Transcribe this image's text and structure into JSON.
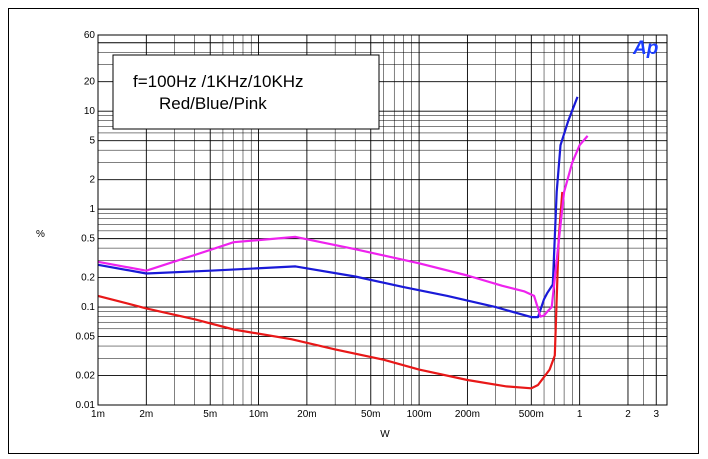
{
  "chart_data": {
    "type": "line",
    "title": "",
    "xlabel": "W",
    "ylabel": "%",
    "x_scale": "log",
    "y_scale": "log",
    "xlim": [
      0.001,
      3.5
    ],
    "ylim": [
      0.01,
      60
    ],
    "grid": true,
    "x_ticks": [
      {
        "v": 0.001,
        "label": "1m"
      },
      {
        "v": 0.002,
        "label": "2m"
      },
      {
        "v": 0.005,
        "label": "5m"
      },
      {
        "v": 0.01,
        "label": "10m"
      },
      {
        "v": 0.02,
        "label": "20m"
      },
      {
        "v": 0.05,
        "label": "50m"
      },
      {
        "v": 0.1,
        "label": "100m"
      },
      {
        "v": 0.2,
        "label": "200m"
      },
      {
        "v": 0.5,
        "label": "500m"
      },
      {
        "v": 1,
        "label": "1"
      },
      {
        "v": 2,
        "label": "2"
      },
      {
        "v": 3,
        "label": "3"
      }
    ],
    "y_ticks": [
      {
        "v": 0.01,
        "label": "0.01"
      },
      {
        "v": 0.02,
        "label": "0.02"
      },
      {
        "v": 0.05,
        "label": "0.05"
      },
      {
        "v": 0.1,
        "label": "0.1"
      },
      {
        "v": 0.2,
        "label": "0.2"
      },
      {
        "v": 0.5,
        "label": "0.5"
      },
      {
        "v": 1,
        "label": "1"
      },
      {
        "v": 2,
        "label": "2"
      },
      {
        "v": 5,
        "label": "5"
      },
      {
        "v": 10,
        "label": "10"
      },
      {
        "v": 20,
        "label": "20"
      },
      {
        "v": 60,
        "label": "60"
      }
    ],
    "legend": {
      "position": "top-left",
      "lines": [
        "f=100Hz /1KHz/10KHz",
        "Red/Blue/Pink"
      ]
    },
    "series": [
      {
        "color": "#e81818",
        "x": [
          0.001,
          0.002,
          0.004,
          0.007,
          0.016,
          0.03,
          0.06,
          0.1,
          0.2,
          0.35,
          0.5,
          0.55,
          0.65,
          0.7,
          0.74,
          0.78
        ],
        "y": [
          0.13,
          0.097,
          0.075,
          0.059,
          0.047,
          0.037,
          0.029,
          0.023,
          0.018,
          0.0155,
          0.0148,
          0.016,
          0.023,
          0.032,
          0.5,
          1.5
        ]
      },
      {
        "color": "#1a1ad8",
        "x": [
          0.001,
          0.002,
          0.005,
          0.017,
          0.04,
          0.08,
          0.15,
          0.3,
          0.5,
          0.55,
          0.6,
          0.63,
          0.68,
          0.72,
          0.76,
          0.85,
          0.97
        ],
        "y": [
          0.27,
          0.22,
          0.235,
          0.26,
          0.205,
          0.16,
          0.13,
          0.1,
          0.079,
          0.079,
          0.12,
          0.14,
          0.17,
          1.5,
          4.5,
          8.0,
          14.0
        ]
      },
      {
        "color": "#ee22ee",
        "x": [
          0.001,
          0.002,
          0.004,
          0.007,
          0.017,
          0.04,
          0.1,
          0.2,
          0.33,
          0.45,
          0.52,
          0.57,
          0.6,
          0.63,
          0.67,
          0.72,
          0.8,
          0.9,
          1.0,
          1.12
        ],
        "y": [
          0.29,
          0.235,
          0.34,
          0.46,
          0.52,
          0.39,
          0.28,
          0.21,
          0.165,
          0.145,
          0.13,
          0.08,
          0.082,
          0.09,
          0.1,
          0.3,
          1.5,
          3.0,
          4.5,
          5.6
        ]
      }
    ]
  },
  "logo": {
    "text": "Ap",
    "name": "ap-logo"
  }
}
